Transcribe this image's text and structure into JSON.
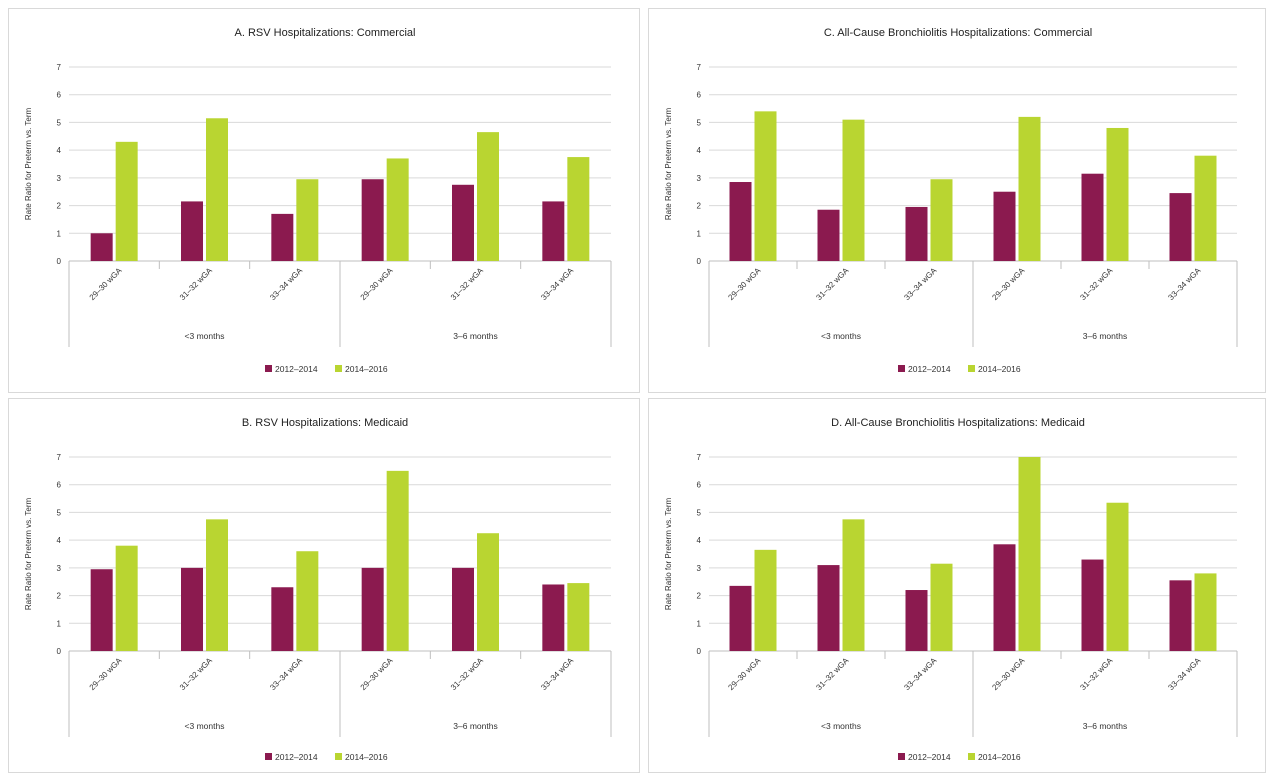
{
  "colors": {
    "s2012": "#8b1a4f",
    "s2014": "#b9d531",
    "grid": "#d9d9d9",
    "axis": "#bfbfbf"
  },
  "chart_data": [
    {
      "id": "A",
      "type": "bar",
      "title": "A. RSV Hospitalizations: Commercial",
      "ylabel": "Rate Ratio for Preterm vs. Term",
      "ylim": [
        0,
        7
      ],
      "yticks": [
        "0",
        "1",
        "2",
        "3",
        "4",
        "5",
        "6",
        "7"
      ],
      "categories": [
        "29–30 wGA",
        "31–32 wGA",
        "33–34 wGA",
        "29–30 wGA",
        "31–32 wGA",
        "33–34 wGA"
      ],
      "groups": [
        "<3 months",
        "3–6 months"
      ],
      "series": [
        {
          "name": "2012–2014",
          "values": [
            1.0,
            2.15,
            1.7,
            2.95,
            2.75,
            2.15
          ]
        },
        {
          "name": "2014–2016",
          "values": [
            4.3,
            5.15,
            2.95,
            3.7,
            4.65,
            3.75
          ]
        }
      ],
      "legend": "bottom"
    },
    {
      "id": "C",
      "type": "bar",
      "title": "C. All-Cause Bronchiolitis Hospitalizations: Commercial",
      "ylabel": "Rate Ratio for Preterm vs. Term",
      "ylim": [
        0,
        7
      ],
      "yticks": [
        "0",
        "1",
        "2",
        "3",
        "4",
        "5",
        "6",
        "7"
      ],
      "categories": [
        "29–30 wGA",
        "31–32 wGA",
        "33–34 wGA",
        "29–30 wGA",
        "31–32 wGA",
        "33–34 wGA"
      ],
      "groups": [
        "<3 months",
        "3–6 months"
      ],
      "series": [
        {
          "name": "2012–2014",
          "values": [
            2.85,
            1.85,
            1.95,
            2.5,
            3.15,
            2.45
          ]
        },
        {
          "name": "2014–2016",
          "values": [
            5.4,
            5.1,
            2.95,
            5.2,
            4.8,
            3.8
          ]
        }
      ],
      "legend": "bottom"
    },
    {
      "id": "B",
      "type": "bar",
      "title": "B. RSV Hospitalizations: Medicaid",
      "ylabel": "Rate Ratio for Preterm vs. Term",
      "ylim": [
        0,
        7
      ],
      "yticks": [
        "0",
        "1",
        "2",
        "3",
        "4",
        "5",
        "6",
        "7"
      ],
      "categories": [
        "29–30 wGA",
        "31–32 wGA",
        "33–34 wGA",
        "29–30 wGA",
        "31–32 wGA",
        "33–34 wGA"
      ],
      "groups": [
        "<3 months",
        "3–6 months"
      ],
      "series": [
        {
          "name": "2012–2014",
          "values": [
            2.95,
            3.0,
            2.3,
            3.0,
            3.0,
            2.4
          ]
        },
        {
          "name": "2014–2016",
          "values": [
            3.8,
            4.75,
            3.6,
            6.5,
            4.25,
            2.45
          ]
        }
      ],
      "legend": "bottom"
    },
    {
      "id": "D",
      "type": "bar",
      "title": "D. All-Cause Bronchiolitis Hospitalizations: Medicaid",
      "ylabel": "Rate Ratio for Preterm vs. Term",
      "ylim": [
        0,
        7
      ],
      "yticks": [
        "0",
        "1",
        "2",
        "3",
        "4",
        "5",
        "6",
        "7"
      ],
      "categories": [
        "29–30 wGA",
        "31–32 wGA",
        "33–34 wGA",
        "29–30 wGA",
        "31–32 wGA",
        "33–34 wGA"
      ],
      "groups": [
        "<3 months",
        "3–6 months"
      ],
      "series": [
        {
          "name": "2012–2014",
          "values": [
            2.35,
            3.1,
            2.2,
            3.85,
            3.3,
            2.55
          ]
        },
        {
          "name": "2014–2016",
          "values": [
            3.65,
            4.75,
            3.15,
            7.0,
            5.35,
            2.8
          ]
        }
      ],
      "legend": "bottom"
    }
  ]
}
